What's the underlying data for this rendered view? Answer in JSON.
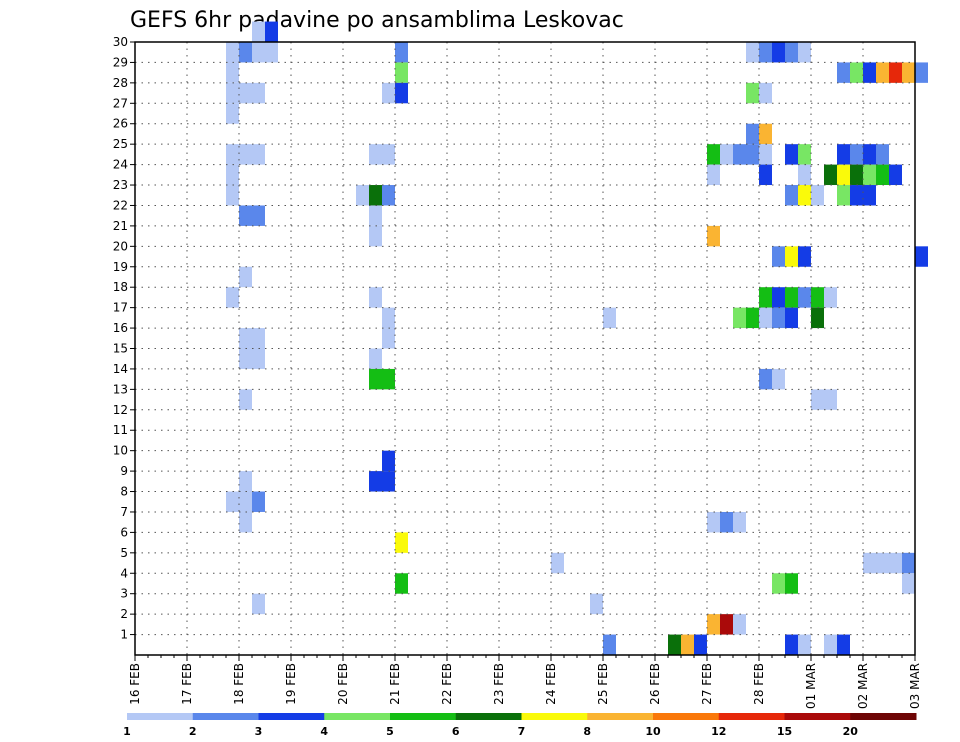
{
  "chart_data": {
    "type": "heatmap",
    "title": "GEFS 6hr padavine po ansamblima Leskovac",
    "xlabel": "",
    "ylabel": "",
    "x_ticks": [
      "16 FEB",
      "17 FEB",
      "18 FEB",
      "19 FEB",
      "20 FEB",
      "21 FEB",
      "22 FEB",
      "23 FEB",
      "24 FEB",
      "25 FEB",
      "26 FEB",
      "27 FEB",
      "28 FEB",
      "01 MAR",
      "02 MAR",
      "03 MAR"
    ],
    "x_range": [
      "16 FEB 00Z",
      "03 MAR 00Z"
    ],
    "time_step_hours": 6,
    "y_ticks": [
      1,
      2,
      3,
      4,
      5,
      6,
      7,
      8,
      9,
      10,
      11,
      12,
      13,
      14,
      15,
      16,
      17,
      18,
      19,
      20,
      21,
      22,
      23,
      24,
      25,
      26,
      27,
      28,
      29,
      30
    ],
    "y_range": [
      0,
      30
    ],
    "grid": "dotted",
    "colorbar": {
      "placement": "bottom",
      "labels": [
        "1",
        "2",
        "3",
        "4",
        "5",
        "6",
        "7",
        "8",
        "10",
        "12",
        "15",
        "20"
      ],
      "colors": [
        "#b4c8f5",
        "#5a87eb",
        "#143ce6",
        "#78e664",
        "#14be14",
        "#0a700a",
        "#fafa0a",
        "#fab432",
        "#fa780a",
        "#e6280a",
        "#aa0a0a",
        "#6e0505"
      ]
    },
    "cells": [
      {
        "member": 30,
        "time": "18 FEB 06Z",
        "color": "#b4c8f5"
      },
      {
        "member": 30,
        "time": "18 FEB 12Z",
        "color": "#143ce6"
      },
      {
        "member": 29,
        "time": "17 FEB 18Z",
        "color": "#b4c8f5"
      },
      {
        "member": 29,
        "time": "18 FEB 00Z",
        "color": "#5a87eb"
      },
      {
        "member": 29,
        "time": "18 FEB 06Z",
        "color": "#b4c8f5"
      },
      {
        "member": 29,
        "time": "18 FEB 12Z",
        "color": "#b4c8f5"
      },
      {
        "member": 29,
        "time": "21 FEB 00Z",
        "color": "#5a87eb"
      },
      {
        "member": 29,
        "time": "27 FEB 18Z",
        "color": "#b4c8f5"
      },
      {
        "member": 29,
        "time": "28 FEB 00Z",
        "color": "#5a87eb"
      },
      {
        "member": 29,
        "time": "28 FEB 06Z",
        "color": "#143ce6"
      },
      {
        "member": 29,
        "time": "28 FEB 12Z",
        "color": "#5a87eb"
      },
      {
        "member": 29,
        "time": "28 FEB 18Z",
        "color": "#b4c8f5"
      },
      {
        "member": 28,
        "time": "17 FEB 18Z",
        "color": "#b4c8f5"
      },
      {
        "member": 28,
        "time": "21 FEB 00Z",
        "color": "#78e664"
      },
      {
        "member": 28,
        "time": "01 MAR 12Z",
        "color": "#5a87eb"
      },
      {
        "member": 28,
        "time": "01 MAR 18Z",
        "color": "#78e664"
      },
      {
        "member": 28,
        "time": "02 MAR 00Z",
        "color": "#143ce6"
      },
      {
        "member": 28,
        "time": "02 MAR 06Z",
        "color": "#fab432"
      },
      {
        "member": 28,
        "time": "02 MAR 12Z",
        "color": "#e6280a"
      },
      {
        "member": 28,
        "time": "02 MAR 18Z",
        "color": "#fab432"
      },
      {
        "member": 28,
        "time": "03 MAR 00Z",
        "color": "#5a87eb"
      },
      {
        "member": 27,
        "time": "17 FEB 18Z",
        "color": "#b4c8f5"
      },
      {
        "member": 27,
        "time": "18 FEB 00Z",
        "color": "#b4c8f5"
      },
      {
        "member": 27,
        "time": "18 FEB 06Z",
        "color": "#b4c8f5"
      },
      {
        "member": 27,
        "time": "20 FEB 18Z",
        "color": "#b4c8f5"
      },
      {
        "member": 27,
        "time": "21 FEB 00Z",
        "color": "#143ce6"
      },
      {
        "member": 27,
        "time": "27 FEB 18Z",
        "color": "#78e664"
      },
      {
        "member": 27,
        "time": "28 FEB 00Z",
        "color": "#b4c8f5"
      },
      {
        "member": 26,
        "time": "17 FEB 18Z",
        "color": "#b4c8f5"
      },
      {
        "member": 25,
        "time": "27 FEB 18Z",
        "color": "#5a87eb"
      },
      {
        "member": 25,
        "time": "28 FEB 00Z",
        "color": "#fab432"
      },
      {
        "member": 24,
        "time": "17 FEB 18Z",
        "color": "#b4c8f5"
      },
      {
        "member": 24,
        "time": "18 FEB 00Z",
        "color": "#b4c8f5"
      },
      {
        "member": 24,
        "time": "18 FEB 06Z",
        "color": "#b4c8f5"
      },
      {
        "member": 24,
        "time": "20 FEB 12Z",
        "color": "#b4c8f5"
      },
      {
        "member": 24,
        "time": "20 FEB 18Z",
        "color": "#b4c8f5"
      },
      {
        "member": 24,
        "time": "27 FEB 00Z",
        "color": "#14be14"
      },
      {
        "member": 24,
        "time": "27 FEB 06Z",
        "color": "#b4c8f5"
      },
      {
        "member": 24,
        "time": "27 FEB 12Z",
        "color": "#5a87eb"
      },
      {
        "member": 24,
        "time": "27 FEB 18Z",
        "color": "#5a87eb"
      },
      {
        "member": 24,
        "time": "28 FEB 00Z",
        "color": "#b4c8f5"
      },
      {
        "member": 24,
        "time": "28 FEB 12Z",
        "color": "#143ce6"
      },
      {
        "member": 24,
        "time": "28 FEB 18Z",
        "color": "#78e664"
      },
      {
        "member": 24,
        "time": "01 MAR 12Z",
        "color": "#143ce6"
      },
      {
        "member": 24,
        "time": "01 MAR 18Z",
        "color": "#5a87eb"
      },
      {
        "member": 24,
        "time": "02 MAR 00Z",
        "color": "#143ce6"
      },
      {
        "member": 24,
        "time": "02 MAR 06Z",
        "color": "#5a87eb"
      },
      {
        "member": 23,
        "time": "17 FEB 18Z",
        "color": "#b4c8f5"
      },
      {
        "member": 23,
        "time": "27 FEB 00Z",
        "color": "#b4c8f5"
      },
      {
        "member": 23,
        "time": "28 FEB 00Z",
        "color": "#143ce6"
      },
      {
        "member": 23,
        "time": "28 FEB 18Z",
        "color": "#b4c8f5"
      },
      {
        "member": 23,
        "time": "01 MAR 06Z",
        "color": "#0a700a"
      },
      {
        "member": 23,
        "time": "01 MAR 12Z",
        "color": "#fafa0a"
      },
      {
        "member": 23,
        "time": "01 MAR 18Z",
        "color": "#0a700a"
      },
      {
        "member": 23,
        "time": "02 MAR 00Z",
        "color": "#78e664"
      },
      {
        "member": 23,
        "time": "02 MAR 06Z",
        "color": "#14be14"
      },
      {
        "member": 23,
        "time": "02 MAR 12Z",
        "color": "#143ce6"
      },
      {
        "member": 22,
        "time": "17 FEB 18Z",
        "color": "#b4c8f5"
      },
      {
        "member": 22,
        "time": "20 FEB 06Z",
        "color": "#b4c8f5"
      },
      {
        "member": 22,
        "time": "20 FEB 12Z",
        "color": "#0a700a"
      },
      {
        "member": 22,
        "time": "20 FEB 18Z",
        "color": "#5a87eb"
      },
      {
        "member": 22,
        "time": "28 FEB 12Z",
        "color": "#5a87eb"
      },
      {
        "member": 22,
        "time": "28 FEB 18Z",
        "color": "#fafa0a"
      },
      {
        "member": 22,
        "time": "01 MAR 00Z",
        "color": "#b4c8f5"
      },
      {
        "member": 22,
        "time": "01 MAR 12Z",
        "color": "#78e664"
      },
      {
        "member": 22,
        "time": "01 MAR 18Z",
        "color": "#143ce6"
      },
      {
        "member": 22,
        "time": "02 MAR 00Z",
        "color": "#143ce6"
      },
      {
        "member": 21,
        "time": "18 FEB 00Z",
        "color": "#5a87eb"
      },
      {
        "member": 21,
        "time": "18 FEB 06Z",
        "color": "#5a87eb"
      },
      {
        "member": 21,
        "time": "20 FEB 12Z",
        "color": "#b4c8f5"
      },
      {
        "member": 20,
        "time": "20 FEB 12Z",
        "color": "#b4c8f5"
      },
      {
        "member": 20,
        "time": "27 FEB 00Z",
        "color": "#fab432"
      },
      {
        "member": 19,
        "time": "28 FEB 06Z",
        "color": "#5a87eb"
      },
      {
        "member": 19,
        "time": "28 FEB 12Z",
        "color": "#fafa0a"
      },
      {
        "member": 19,
        "time": "28 FEB 18Z",
        "color": "#143ce6"
      },
      {
        "member": 19,
        "time": "03 MAR 00Z",
        "color": "#143ce6"
      },
      {
        "member": 18,
        "time": "18 FEB 00Z",
        "color": "#b4c8f5"
      },
      {
        "member": 17,
        "time": "17 FEB 18Z",
        "color": "#b4c8f5"
      },
      {
        "member": 17,
        "time": "20 FEB 12Z",
        "color": "#b4c8f5"
      },
      {
        "member": 17,
        "time": "28 FEB 00Z",
        "color": "#14be14"
      },
      {
        "member": 17,
        "time": "28 FEB 06Z",
        "color": "#143ce6"
      },
      {
        "member": 17,
        "time": "28 FEB 12Z",
        "color": "#14be14"
      },
      {
        "member": 17,
        "time": "28 FEB 18Z",
        "color": "#5a87eb"
      },
      {
        "member": 17,
        "time": "01 MAR 00Z",
        "color": "#14be14"
      },
      {
        "member": 17,
        "time": "01 MAR 06Z",
        "color": "#b4c8f5"
      },
      {
        "member": 16,
        "time": "20 FEB 18Z",
        "color": "#b4c8f5"
      },
      {
        "member": 16,
        "time": "25 FEB 00Z",
        "color": "#b4c8f5"
      },
      {
        "member": 16,
        "time": "27 FEB 12Z",
        "color": "#78e664"
      },
      {
        "member": 16,
        "time": "27 FEB 18Z",
        "color": "#14be14"
      },
      {
        "member": 16,
        "time": "28 FEB 00Z",
        "color": "#b4c8f5"
      },
      {
        "member": 16,
        "time": "28 FEB 06Z",
        "color": "#5a87eb"
      },
      {
        "member": 16,
        "time": "28 FEB 12Z",
        "color": "#143ce6"
      },
      {
        "member": 16,
        "time": "01 MAR 00Z",
        "color": "#0a700a"
      },
      {
        "member": 15,
        "time": "18 FEB 00Z",
        "color": "#b4c8f5"
      },
      {
        "member": 15,
        "time": "18 FEB 06Z",
        "color": "#b4c8f5"
      },
      {
        "member": 15,
        "time": "20 FEB 18Z",
        "color": "#b4c8f5"
      },
      {
        "member": 14,
        "time": "18 FEB 00Z",
        "color": "#b4c8f5"
      },
      {
        "member": 14,
        "time": "18 FEB 06Z",
        "color": "#b4c8f5"
      },
      {
        "member": 14,
        "time": "20 FEB 12Z",
        "color": "#b4c8f5"
      },
      {
        "member": 13,
        "time": "20 FEB 12Z",
        "color": "#14be14"
      },
      {
        "member": 13,
        "time": "20 FEB 18Z",
        "color": "#14be14"
      },
      {
        "member": 13,
        "time": "28 FEB 00Z",
        "color": "#5a87eb"
      },
      {
        "member": 13,
        "time": "28 FEB 06Z",
        "color": "#b4c8f5"
      },
      {
        "member": 12,
        "time": "18 FEB 00Z",
        "color": "#b4c8f5"
      },
      {
        "member": 12,
        "time": "01 MAR 00Z",
        "color": "#b4c8f5"
      },
      {
        "member": 12,
        "time": "01 MAR 06Z",
        "color": "#b4c8f5"
      },
      {
        "member": 9,
        "time": "20 FEB 18Z",
        "color": "#143ce6"
      },
      {
        "member": 8,
        "time": "18 FEB 00Z",
        "color": "#b4c8f5"
      },
      {
        "member": 8,
        "time": "20 FEB 12Z",
        "color": "#143ce6"
      },
      {
        "member": 8,
        "time": "20 FEB 18Z",
        "color": "#143ce6"
      },
      {
        "member": 7,
        "time": "17 FEB 18Z",
        "color": "#b4c8f5"
      },
      {
        "member": 7,
        "time": "18 FEB 00Z",
        "color": "#b4c8f5"
      },
      {
        "member": 7,
        "time": "18 FEB 06Z",
        "color": "#5a87eb"
      },
      {
        "member": 6,
        "time": "18 FEB 00Z",
        "color": "#b4c8f5"
      },
      {
        "member": 6,
        "time": "27 FEB 00Z",
        "color": "#b4c8f5"
      },
      {
        "member": 6,
        "time": "27 FEB 06Z",
        "color": "#5a87eb"
      },
      {
        "member": 6,
        "time": "27 FEB 12Z",
        "color": "#b4c8f5"
      },
      {
        "member": 5,
        "time": "21 FEB 00Z",
        "color": "#fafa0a"
      },
      {
        "member": 4,
        "time": "24 FEB 00Z",
        "color": "#b4c8f5"
      },
      {
        "member": 4,
        "time": "02 MAR 00Z",
        "color": "#b4c8f5"
      },
      {
        "member": 4,
        "time": "02 MAR 06Z",
        "color": "#b4c8f5"
      },
      {
        "member": 4,
        "time": "02 MAR 12Z",
        "color": "#b4c8f5"
      },
      {
        "member": 4,
        "time": "02 MAR 18Z",
        "color": "#5a87eb"
      },
      {
        "member": 3,
        "time": "21 FEB 00Z",
        "color": "#14be14"
      },
      {
        "member": 3,
        "time": "28 FEB 06Z",
        "color": "#78e664"
      },
      {
        "member": 3,
        "time": "28 FEB 12Z",
        "color": "#14be14"
      },
      {
        "member": 3,
        "time": "02 MAR 18Z",
        "color": "#b4c8f5"
      },
      {
        "member": 2,
        "time": "18 FEB 06Z",
        "color": "#b4c8f5"
      },
      {
        "member": 2,
        "time": "24 FEB 18Z",
        "color": "#b4c8f5"
      },
      {
        "member": 1,
        "time": "27 FEB 00Z",
        "color": "#fab432"
      },
      {
        "member": 1,
        "time": "27 FEB 06Z",
        "color": "#aa0a0a"
      },
      {
        "member": 1,
        "time": "27 FEB 12Z",
        "color": "#b4c8f5"
      },
      {
        "member": 0,
        "time": "25 FEB 00Z",
        "color": "#5a87eb"
      },
      {
        "member": 0,
        "time": "26 FEB 06Z",
        "color": "#0a700a"
      },
      {
        "member": 0,
        "time": "26 FEB 12Z",
        "color": "#fab432"
      },
      {
        "member": 0,
        "time": "26 FEB 18Z",
        "color": "#143ce6"
      },
      {
        "member": 0,
        "time": "28 FEB 12Z",
        "color": "#143ce6"
      },
      {
        "member": 0,
        "time": "28 FEB 18Z",
        "color": "#b4c8f5"
      },
      {
        "member": 0,
        "time": "01 MAR 06Z",
        "color": "#b4c8f5"
      },
      {
        "member": 0,
        "time": "01 MAR 12Z",
        "color": "#143ce6"
      }
    ]
  }
}
